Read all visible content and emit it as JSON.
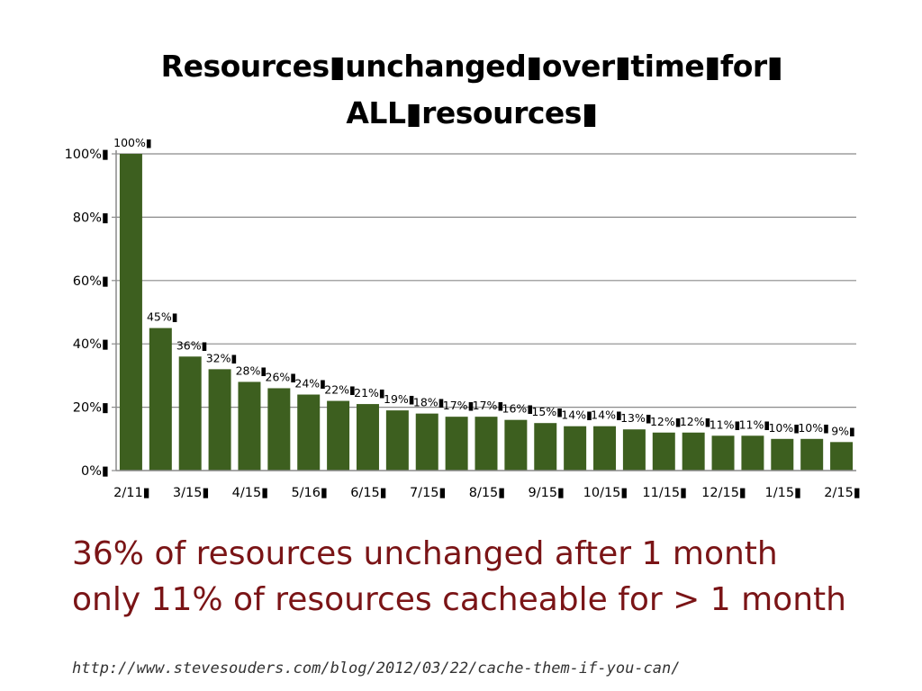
{
  "slide": {
    "callout_lines": [
      "36% of resources unchanged after 1 month",
      "only 11% of resources cacheable for > 1 month"
    ],
    "source_url": "http://www.stevesouders.com/blog/2012/03/22/cache-them-if-you-can/"
  },
  "chart_data": {
    "type": "bar",
    "title_lines": [
      "Resources▮unchanged▮over▮time▮for▮",
      "ALL▮resources▮"
    ],
    "xlabel": "",
    "ylabel": "",
    "ylim": [
      0,
      100
    ],
    "y_ticks": [
      0,
      20,
      40,
      60,
      80,
      100
    ],
    "y_tick_labels": [
      "0%▮",
      "20%▮",
      "40%▮",
      "60%▮",
      "80%▮",
      "100%▮"
    ],
    "grid": true,
    "bar_color": "#3d5f1f",
    "values": [
      100,
      45,
      36,
      32,
      28,
      26,
      24,
      22,
      21,
      19,
      18,
      17,
      17,
      16,
      15,
      14,
      14,
      13,
      12,
      12,
      11,
      11,
      10,
      10,
      9
    ],
    "data_labels": [
      "100%▮",
      "45%▮",
      "36%▮",
      "32%▮",
      "28%▮",
      "26%▮",
      "24%▮",
      "22%▮",
      "21%▮",
      "19%▮",
      "18%▮",
      "17%▮",
      "17%▮",
      "16%▮",
      "15%▮",
      "14%▮",
      "14%▮",
      "13%▮",
      "12%▮",
      "12%▮",
      "11%▮",
      "11%▮",
      "10%▮",
      "10%▮",
      "9%▮"
    ],
    "categories": [
      "2/11",
      "",
      "3/15",
      "",
      "4/15",
      "",
      "5/16",
      "",
      "6/15",
      "",
      "7/15",
      "",
      "8/15",
      "",
      "9/15",
      "",
      "10/15",
      "",
      "11/15",
      "",
      "12/15",
      "",
      "1/15",
      "",
      "2/15"
    ],
    "category_labels": [
      "2/11▮",
      "",
      "3/15▮",
      "",
      "4/15▮",
      "",
      "5/16▮",
      "",
      "6/15▮",
      "",
      "7/15▮",
      "",
      "8/15▮",
      "",
      "9/15▮",
      "",
      "10/15▮",
      "",
      "11/15▮",
      "",
      "12/15▮",
      "",
      "1/15▮",
      "",
      "2/15▮"
    ]
  }
}
